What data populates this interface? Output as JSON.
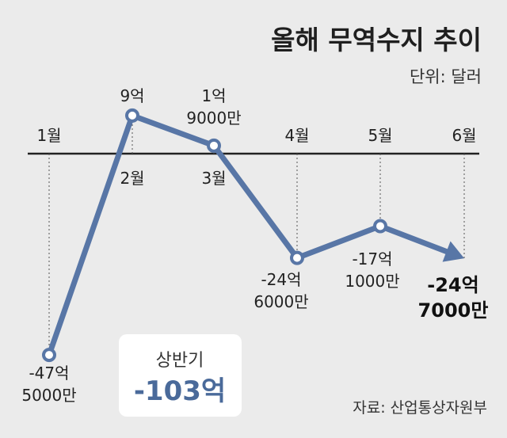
{
  "chart_data": {
    "type": "line",
    "title": "올해 무역수지 추이",
    "unit": "단위: 달러",
    "source": "자료: 산업통상자원부",
    "categories": [
      "1월",
      "2월",
      "3월",
      "4월",
      "5월",
      "6월"
    ],
    "values": [
      -47.5,
      9,
      1.9,
      -24.6,
      -17.1,
      -24.7
    ],
    "value_labels": [
      [
        "-47억",
        "5000만"
      ],
      [
        "9억"
      ],
      [
        "1억",
        "9000만"
      ],
      [
        "-24억",
        "6000만"
      ],
      [
        "-17억",
        "1000만"
      ],
      [
        "-24억",
        "7000만"
      ]
    ],
    "summary": {
      "label": "상반기",
      "value": "-103억"
    },
    "line_color": "#5876a6",
    "axis_color": "#222222"
  }
}
